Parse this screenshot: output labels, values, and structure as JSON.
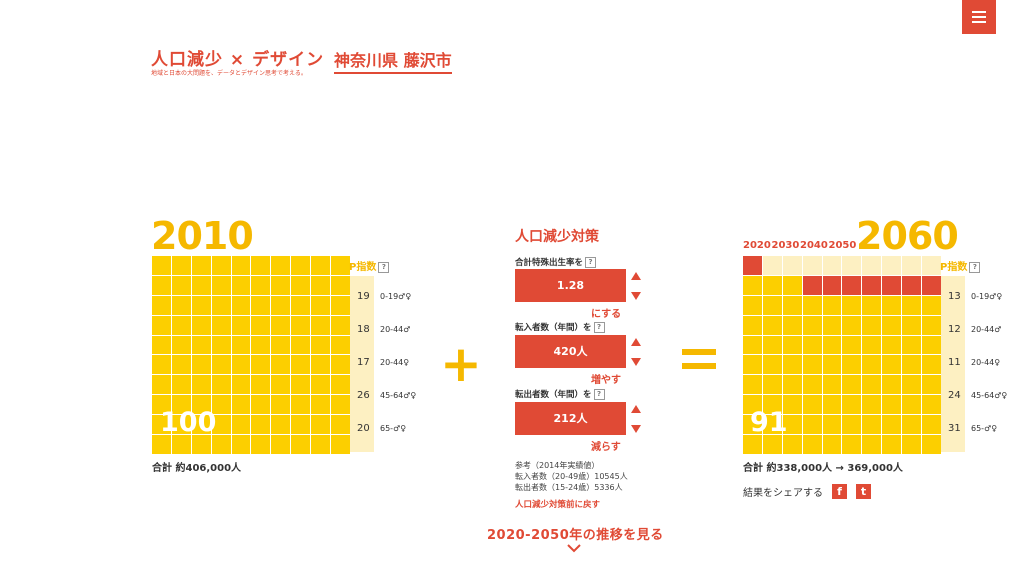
{
  "header": {
    "title": "人口減少 × デザイン",
    "subtitle": "地域と日本の大問題を、データとデザイン思考で考える。",
    "city": "神奈川県 藤沢市",
    "menu_icon": "hamburger-icon"
  },
  "left": {
    "year": "2010",
    "big_number": "100",
    "p_index_label": "P指数",
    "q_mark": "?",
    "rows": [
      {
        "value": "19",
        "label": "0-19♂♀"
      },
      {
        "value": "18",
        "label": "20-44♂"
      },
      {
        "value": "17",
        "label": "20-44♀"
      },
      {
        "value": "26",
        "label": "45-64♂♀"
      },
      {
        "value": "20",
        "label": "65-♂♀"
      }
    ],
    "total": "合計 約406,000人"
  },
  "operators": {
    "plus": "+",
    "equals": "="
  },
  "measures": {
    "title": "人口減少対策",
    "fertility": {
      "label": "合計特殊出生率を",
      "value": "1.28",
      "action": "にする"
    },
    "move_in": {
      "label": "転入者数（年間）を",
      "value": "420人",
      "action": "増やす"
    },
    "move_out": {
      "label": "転出者数（年間）を",
      "value": "212人",
      "action": "減らす"
    },
    "reference": [
      "参考（2014年実績値）",
      "転入者数（20-49歳）10545人",
      "転出者数（15-24歳）5336人"
    ],
    "reset": "人口減少対策前に戻す"
  },
  "transition_link": "2020-2050年の推移を見る",
  "right": {
    "decades": [
      "2020",
      "2030",
      "2040",
      "2050"
    ],
    "year": "2060",
    "big_number": "91",
    "p_index_label": "P指数",
    "rows": [
      {
        "value": "13",
        "label": "0-19♂♀"
      },
      {
        "value": "12",
        "label": "20-44♂"
      },
      {
        "value": "11",
        "label": "20-44♀"
      },
      {
        "value": "24",
        "label": "45-64♂♀"
      },
      {
        "value": "31",
        "label": "65-♂♀"
      }
    ],
    "total": "合計 約338,000人 → 369,000人",
    "share_label": "結果をシェアする",
    "share_facebook": "f",
    "share_twitter": "t"
  },
  "colors": {
    "accent": "#e04a35",
    "yellow": "#fccf00",
    "pale": "#fdf0c2"
  }
}
